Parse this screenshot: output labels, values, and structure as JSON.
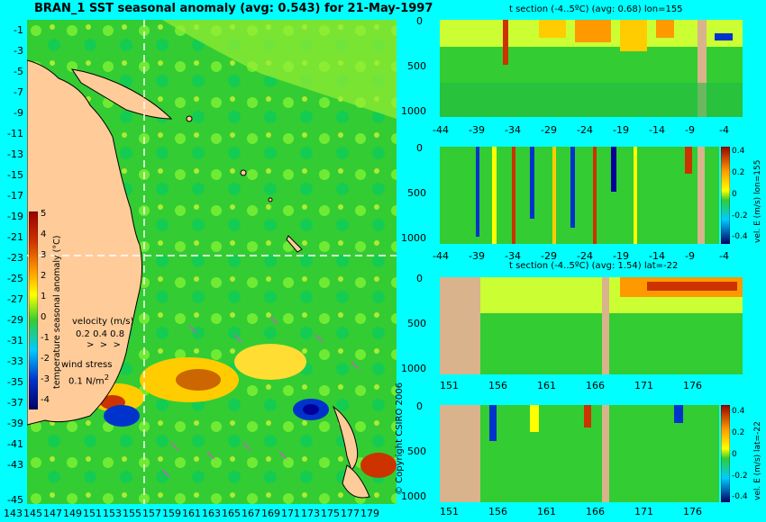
{
  "colors": {
    "background": "#00ffff",
    "land": "#d9b38c",
    "ocean": "#33cc33",
    "warm": "#ffcc00",
    "hot": "#cc3300",
    "cold": "#0033cc",
    "dashed": "#ffffff",
    "arrows": "#ff33ff"
  },
  "map": {
    "title": "BRAN_1  SST seasonal anomaly  (avg: 0.543) for 21-May-1997",
    "lat_labels": [
      "-1",
      "-3",
      "-5",
      "-7",
      "-9",
      "-11",
      "-13",
      "-15",
      "-17",
      "-19",
      "-21",
      "-23",
      "-25",
      "-27",
      "-29",
      "-31",
      "-33",
      "-35",
      "-37",
      "-39",
      "-41",
      "-43",
      "-45"
    ],
    "lon_labels": [
      "143",
      "145",
      "147",
      "149",
      "151",
      "153",
      "155",
      "157",
      "159",
      "161",
      "163",
      "165",
      "167",
      "169",
      "171",
      "173",
      "175",
      "177",
      "179"
    ],
    "colorbar_labels": [
      "5",
      "4",
      "3",
      "2",
      "1",
      "0",
      "-1",
      "-2",
      "-3",
      "-4"
    ],
    "colorbar_title": "temperature seasonal anomaly (°C)",
    "velocity_label": "velocity (m/s)",
    "velocity_scale": "0.2 0.4 0.8",
    "wind_label": "wind stress",
    "wind_scale": "0.1 N/m",
    "wind_scale_sup": "2"
  },
  "copyright": "© Copyright CSIRO 2006",
  "panels": [
    {
      "title": "t section (-4..5ºC) (avg: 0.68) lon=155",
      "y_labels": [
        "0",
        "500",
        "1000"
      ],
      "x_labels": [
        "-44",
        "-39",
        "-34",
        "-29",
        "-24",
        "-19",
        "-14",
        "-9",
        "-4"
      ]
    },
    {
      "title": "",
      "y_labels": [
        "0",
        "500",
        "1000"
      ],
      "x_labels": [
        "-44",
        "-39",
        "-34",
        "-29",
        "-24",
        "-19",
        "-14",
        "-9",
        "-4"
      ],
      "colorbar_labels": [
        "0.4",
        "0.2",
        "0",
        "-0.2",
        "-0.4"
      ],
      "colorbar_title": "vel. E (m/s) lon=155"
    },
    {
      "title": "t section (-4..5ºC) (avg: 1.54) lat=-22",
      "y_labels": [
        "0",
        "500",
        "1000"
      ],
      "x_labels": [
        "151",
        "156",
        "161",
        "166",
        "171",
        "176"
      ]
    },
    {
      "title": "",
      "y_labels": [
        "0",
        "500",
        "1000"
      ],
      "x_labels": [
        "151",
        "156",
        "161",
        "166",
        "171",
        "176"
      ],
      "colorbar_labels": [
        "0.4",
        "0.2",
        "0",
        "-0.2",
        "-0.4"
      ],
      "colorbar_title": "vel. E (m/s) lat=-22"
    }
  ],
  "chart_data": [
    {
      "type": "heatmap",
      "title": "BRAN_1  SST seasonal anomaly  (avg: 0.543) for 21-May-1997",
      "xlabel": "",
      "ylabel": "",
      "xlim": [
        142,
        180
      ],
      "ylim": [
        -45,
        0
      ],
      "colorbar_range": [
        -4,
        5
      ],
      "section_lines": {
        "lon": 155,
        "lat": -22
      }
    },
    {
      "type": "heatmap",
      "title": "t section (-4..5ºC) (avg: 0.68) lon=155",
      "xlim": [
        -46,
        0
      ],
      "ylim": [
        0,
        1050
      ]
    },
    {
      "type": "heatmap",
      "title": "",
      "xlim": [
        -46,
        0
      ],
      "ylim": [
        0,
        1050
      ],
      "colorbar_range": [
        -0.4,
        0.4
      ]
    },
    {
      "type": "heatmap",
      "title": "t section (-4..5ºC) (avg: 1.54) lat=-22",
      "xlim": [
        149,
        181
      ],
      "ylim": [
        0,
        1050
      ]
    },
    {
      "type": "heatmap",
      "title": "",
      "xlim": [
        149,
        181
      ],
      "ylim": [
        0,
        1050
      ],
      "colorbar_range": [
        -0.4,
        0.4
      ]
    }
  ]
}
